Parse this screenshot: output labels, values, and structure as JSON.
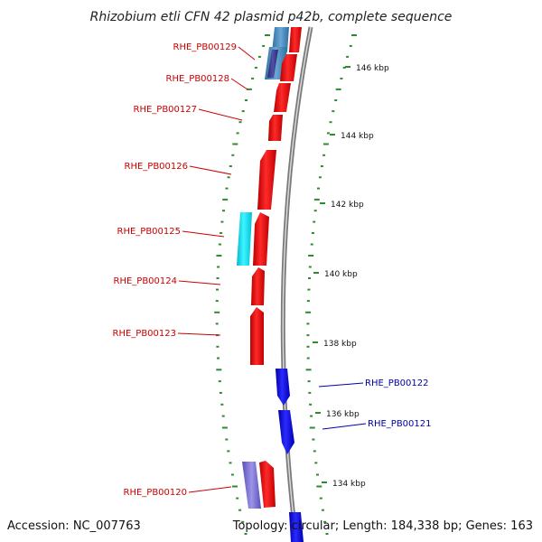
{
  "title": "Rhizobium etli CFN 42 plasmid p42b, complete sequence",
  "accession": "Accession: NC_007763",
  "topology": "Topology: circular; Length: 184,338 bp; Genes: 163",
  "colors": {
    "forward": "#ff0000",
    "reverse": "#0000ff",
    "forward_label": "#cc0000",
    "reverse_label": "#0000aa",
    "cyan_feature": "#00e5ff",
    "steel_feature": "#4682b4",
    "slate_feature": "#6a5acd",
    "backbone": "#8c8c8c",
    "ticks": "#2e8b2e"
  },
  "scale_labels": [
    "146 kbp",
    "144 kbp",
    "142 kbp",
    "140 kbp",
    "138 kbp",
    "136 kbp",
    "134 kbp"
  ],
  "genes": [
    {
      "name": "RHE_PB00129",
      "strand": "forward"
    },
    {
      "name": "RHE_PB00128",
      "strand": "forward"
    },
    {
      "name": "RHE_PB00127",
      "strand": "forward"
    },
    {
      "name": "RHE_PB00126",
      "strand": "forward"
    },
    {
      "name": "RHE_PB00125",
      "strand": "forward"
    },
    {
      "name": "RHE_PB00124",
      "strand": "forward"
    },
    {
      "name": "RHE_PB00123",
      "strand": "forward"
    },
    {
      "name": "RHE_PB00122",
      "strand": "reverse"
    },
    {
      "name": "RHE_PB00121",
      "strand": "reverse"
    },
    {
      "name": "RHE_PB00120",
      "strand": "forward"
    }
  ]
}
